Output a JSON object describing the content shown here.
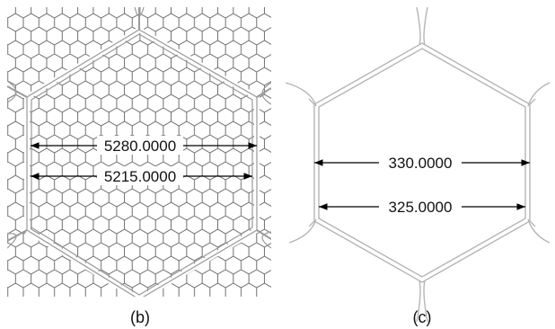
{
  "figure": {
    "panels": [
      {
        "caption": "(b)",
        "dimensions": [
          "5280.0000",
          "5215.0000"
        ]
      },
      {
        "caption": "(c)",
        "dimensions": [
          "330.0000",
          "325.0000"
        ]
      }
    ]
  },
  "colors": {
    "mesh_line": "#6f6f6f",
    "frame_line": "#9a9a9a",
    "dimension_line": "#000000",
    "background": "#ffffff"
  }
}
